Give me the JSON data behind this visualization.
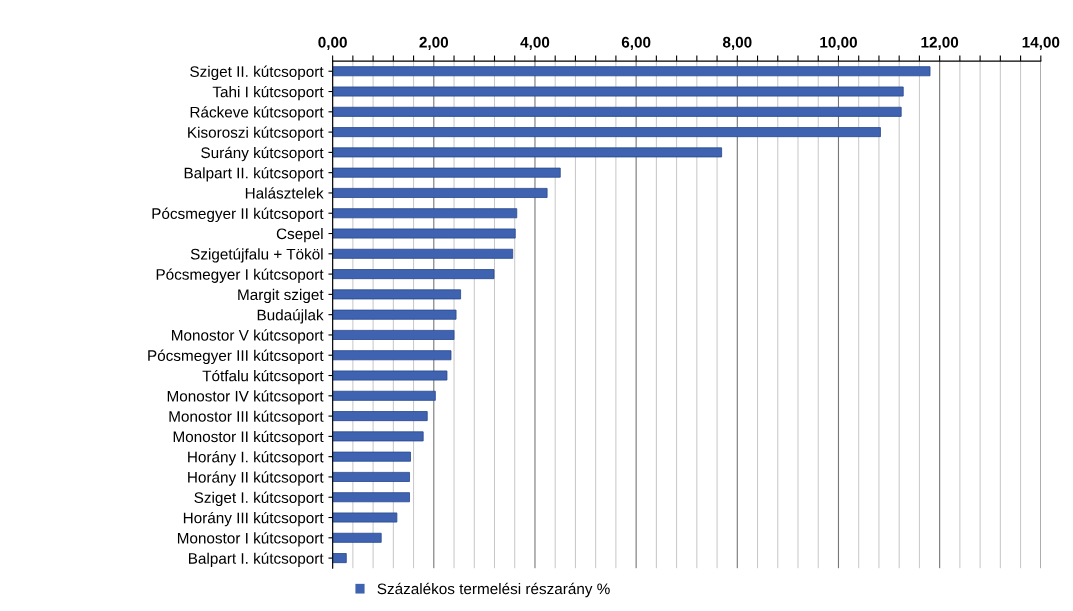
{
  "chart_data": {
    "type": "bar",
    "orientation": "horizontal",
    "categories": [
      "Sziget II. kútcsoport",
      "Tahi I kútcsoport",
      "Ráckeve kútcsoport",
      "Kisoroszi kútcsoport",
      "Surány kútcsoport",
      "Balpart II. kútcsoport",
      "Halásztelek",
      "Pócsmegyer II kútcsoport",
      "Csepel",
      "Szigetújfalu + Tököl",
      "Pócsmegyer I kútcsoport",
      "Margit sziget",
      "Budaújlak",
      "Monostor V kútcsoport",
      "Pócsmegyer III kútcsoport",
      "Tótfalu kútcsoport",
      "Monostor IV kútcsoport",
      "Monostor III kútcsoport",
      "Monostor II kútcsoport",
      "Horány I. kútcsoport",
      "Horány II kútcsoport",
      "Sziget I. kútcsoport",
      "Horány III kútcsoport",
      "Monostor I kútcsoport",
      "Balpart I. kútcsoport"
    ],
    "series": [
      {
        "name": "Százalékos termelési részarány %",
        "color": "#3f63b0",
        "values": [
          11.81,
          11.28,
          11.24,
          10.83,
          7.69,
          4.5,
          4.24,
          3.64,
          3.61,
          3.56,
          3.19,
          2.53,
          2.44,
          2.4,
          2.34,
          2.26,
          2.03,
          1.87,
          1.79,
          1.54,
          1.52,
          1.52,
          1.27,
          0.96,
          0.27
        ]
      }
    ],
    "xlim": [
      0,
      14
    ],
    "xticks": [
      {
        "value": 0,
        "label": "0,00"
      },
      {
        "value": 0.4,
        "label": null
      },
      {
        "value": 0.8,
        "label": null
      },
      {
        "value": 1.2,
        "label": null
      },
      {
        "value": 1.6,
        "label": null
      },
      {
        "value": 2,
        "label": "2,00"
      },
      {
        "value": 2.4,
        "label": null
      },
      {
        "value": 2.8,
        "label": null
      },
      {
        "value": 3.2,
        "label": null
      },
      {
        "value": 3.6,
        "label": null
      },
      {
        "value": 4,
        "label": "4,00"
      },
      {
        "value": 4.4,
        "label": null
      },
      {
        "value": 4.8,
        "label": null
      },
      {
        "value": 5.2,
        "label": null
      },
      {
        "value": 5.6,
        "label": null
      },
      {
        "value": 6,
        "label": "6,00"
      },
      {
        "value": 6.4,
        "label": null
      },
      {
        "value": 6.8,
        "label": null
      },
      {
        "value": 7.2,
        "label": null
      },
      {
        "value": 7.6,
        "label": null
      },
      {
        "value": 8,
        "label": "8,00"
      },
      {
        "value": 8.4,
        "label": null
      },
      {
        "value": 8.8,
        "label": null
      },
      {
        "value": 9.2,
        "label": null
      },
      {
        "value": 9.6,
        "label": null
      },
      {
        "value": 10,
        "label": "10,00"
      },
      {
        "value": 10.4,
        "label": null
      },
      {
        "value": 10.8,
        "label": null
      },
      {
        "value": 11.2,
        "label": null
      },
      {
        "value": 11.6,
        "label": null
      },
      {
        "value": 12,
        "label": "12,00"
      },
      {
        "value": 12.4,
        "label": null
      },
      {
        "value": 12.8,
        "label": null
      },
      {
        "value": 13.2,
        "label": null
      },
      {
        "value": 13.6,
        "label": null
      },
      {
        "value": 14,
        "label": "14,00"
      }
    ],
    "grid": "x",
    "legend": "bottom"
  }
}
